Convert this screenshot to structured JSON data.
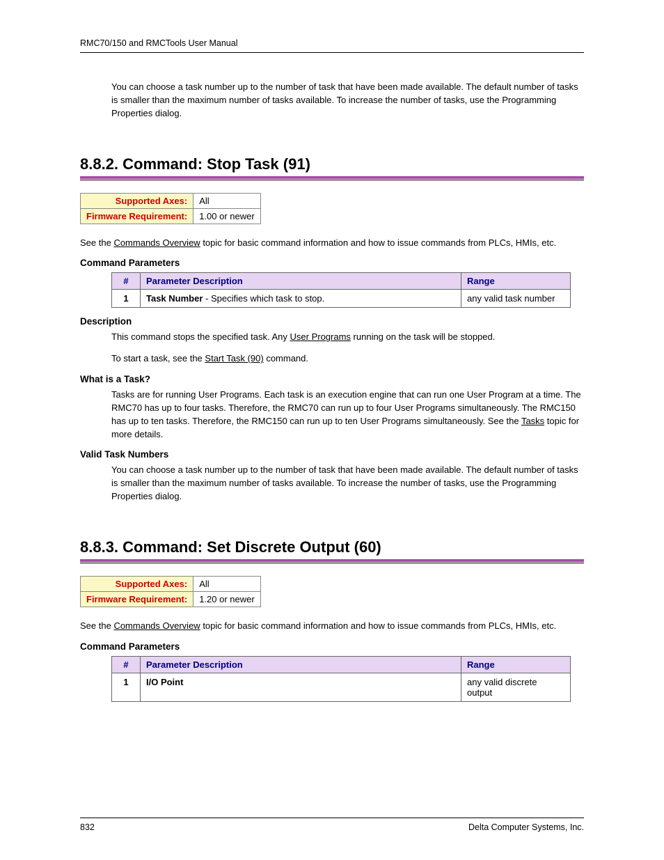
{
  "header": {
    "text": "RMC70/150 and RMCTools User Manual"
  },
  "footer": {
    "pageNumber": "832",
    "company": "Delta Computer Systems, Inc."
  },
  "colors": {
    "heading_rule": "#a64da6",
    "info_label_bg": "#fbf8c4",
    "info_label_fg": "#cc0000",
    "param_header_bg": "#e6d4f2",
    "param_header_fg": "#000080"
  },
  "intro_at_top": "You can choose a task number up to the number of task that have been made available. The default number of tasks is smaller than the maximum number of tasks available. To increase the number of tasks, use the Programming Properties dialog.",
  "sections": [
    {
      "title": "8.8.2. Command: Stop Task (91)",
      "info": {
        "axes_label": "Supported Axes:",
        "axes_value": "All",
        "fw_label": "Firmware Requirement:",
        "fw_value": "1.00 or newer"
      },
      "overview": {
        "pre": "See the ",
        "link1": "Commands Overview",
        "post": " topic for basic command information and how to issue commands from PLCs, HMIs, etc."
      },
      "params_heading": "Command Parameters",
      "params_headers": {
        "num": "#",
        "desc": "Parameter Description",
        "range": "Range"
      },
      "params_rows": [
        {
          "num": "1",
          "bold": "Task Number",
          "rest": " - Specifies which task to stop.",
          "range": "any valid task number"
        }
      ],
      "desc_heading": "Description",
      "desc_para1": {
        "pre": "This command stops the specified task. Any ",
        "link": "User Programs",
        "post": " running on the task will be stopped."
      },
      "desc_para2": {
        "pre": "To start a task, see the ",
        "link": "Start Task (90)",
        "post": " command."
      },
      "what_heading": "What is a Task?",
      "what_para": {
        "pre": "Tasks are for running User Programs. Each task is an execution engine that can run one User Program at a time. The RMC70 has up to four tasks. Therefore, the RMC70 can run up to four User Programs simultaneously. The RMC150 has up to ten tasks. Therefore, the RMC150 can run up to ten User Programs simultaneously. See the ",
        "link": "Tasks",
        "post": " topic for more details."
      },
      "valid_heading": "Valid Task Numbers",
      "valid_para": "You can choose a task number up to the number of task that have been made available. The default number of tasks is smaller than the maximum number of tasks available. To increase the number of tasks, use the Programming Properties dialog."
    },
    {
      "title": "8.8.3. Command: Set Discrete Output (60)",
      "info": {
        "axes_label": "Supported Axes:",
        "axes_value": "All",
        "fw_label": "Firmware Requirement:",
        "fw_value": "1.20 or newer"
      },
      "overview": {
        "pre": "See the ",
        "link1": "Commands Overview",
        "post": " topic for basic command information and how to issue commands from PLCs, HMIs, etc."
      },
      "params_heading": "Command Parameters",
      "params_headers": {
        "num": "#",
        "desc": "Parameter Description",
        "range": "Range"
      },
      "params_rows": [
        {
          "num": "1",
          "bold": "I/O Point",
          "rest": "",
          "range": "any valid discrete output"
        }
      ]
    }
  ]
}
